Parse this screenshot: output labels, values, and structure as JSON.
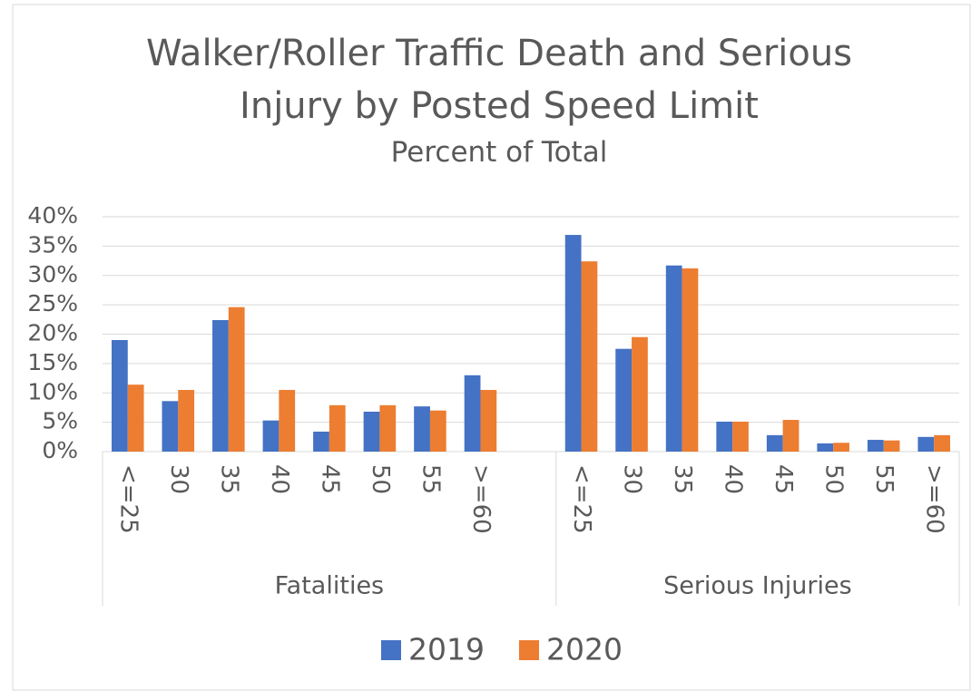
{
  "chart_data": {
    "type": "bar",
    "title": "Walker/Roller Traffic Death and Serious Injury by Posted Speed Limit",
    "subtitle": "Percent of Total",
    "groups": [
      {
        "name": "Fatalities",
        "categories": [
          "<=25",
          "30",
          "35",
          "40",
          "45",
          "50",
          "55",
          ">=60",
          null
        ]
      },
      {
        "name": "Serious Injuries",
        "categories": [
          "<=25",
          "30",
          "35",
          "40",
          "45",
          "50",
          "55",
          ">=60"
        ]
      }
    ],
    "series": [
      {
        "name": "2019",
        "color": "#4472c4",
        "values": [
          [
            19.0,
            8.6,
            22.4,
            5.3,
            3.4,
            6.8,
            7.7,
            13.0,
            null
          ],
          [
            36.9,
            17.5,
            31.7,
            5.1,
            2.8,
            1.4,
            2.0,
            2.5
          ]
        ]
      },
      {
        "name": "2020",
        "color": "#ed7d31",
        "values": [
          [
            11.4,
            10.5,
            24.6,
            10.5,
            7.9,
            7.9,
            7.0,
            10.5,
            null
          ],
          [
            32.4,
            19.5,
            31.2,
            5.1,
            5.4,
            1.5,
            1.9,
            2.8
          ]
        ]
      }
    ],
    "ylim": [
      0,
      40
    ],
    "yticks": [
      {
        "value": 0,
        "label": "0%"
      },
      {
        "value": 5,
        "label": "5%"
      },
      {
        "value": 10,
        "label": "10%"
      },
      {
        "value": 15,
        "label": "15%"
      },
      {
        "value": 20,
        "label": "20%"
      },
      {
        "value": 25,
        "label": "25%"
      },
      {
        "value": 30,
        "label": "30%"
      },
      {
        "value": 35,
        "label": "35%"
      },
      {
        "value": 40,
        "label": "40%"
      }
    ],
    "grid": true,
    "legend": "bottom"
  }
}
